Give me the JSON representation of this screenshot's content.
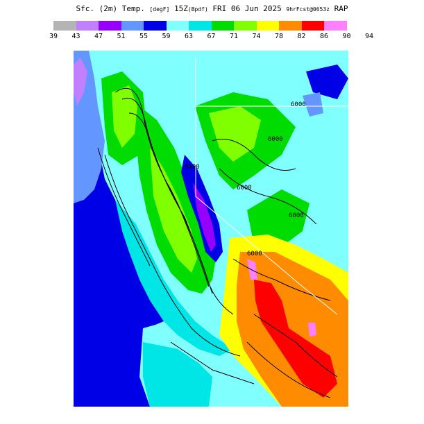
{
  "title": {
    "prefix": "Sfc. (2m) Temp.",
    "units": "[degF]",
    "time": "15Z",
    "tag": "(Bpdf)",
    "date": "FRI 06 Jun 2025",
    "forecast": "9hrFcst@0653z",
    "model": "RAP"
  },
  "legend": {
    "colors": [
      "#b4b4b4",
      "#c080ff",
      "#9600ff",
      "#6496ff",
      "#0000e6",
      "#80ffff",
      "#00e6e6",
      "#00dc00",
      "#80ff00",
      "#ffff00",
      "#ff8c00",
      "#ff0000",
      "#ff80ff"
    ],
    "ticks": [
      "39",
      "43",
      "47",
      "51",
      "55",
      "59",
      "63",
      "67",
      "71",
      "74",
      "78",
      "82",
      "86",
      "90",
      "94"
    ]
  },
  "map": {
    "contour_labels": [
      "6000",
      "6000",
      "6000",
      "6000",
      "6000",
      "6000"
    ],
    "ocean_color": "#0000e6"
  }
}
